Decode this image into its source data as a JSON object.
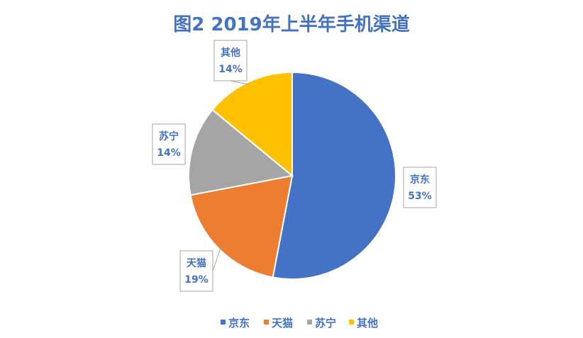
{
  "chart_data": {
    "type": "pie",
    "title": "图2 2019年上半年手机渠道",
    "slices": [
      {
        "name": "京东",
        "value": 53,
        "label": "53%",
        "color": "#4472C4"
      },
      {
        "name": "天猫",
        "value": 19,
        "label": "19%",
        "color": "#ED7D31"
      },
      {
        "name": "苏宁",
        "value": 14,
        "label": "14%",
        "color": "#A5A5A5"
      },
      {
        "name": "其他",
        "value": 14,
        "label": "14%",
        "color": "#FFC000"
      }
    ],
    "legend_position": "bottom",
    "data_labels": "callout-boxes",
    "text_color": "#4472C4"
  }
}
